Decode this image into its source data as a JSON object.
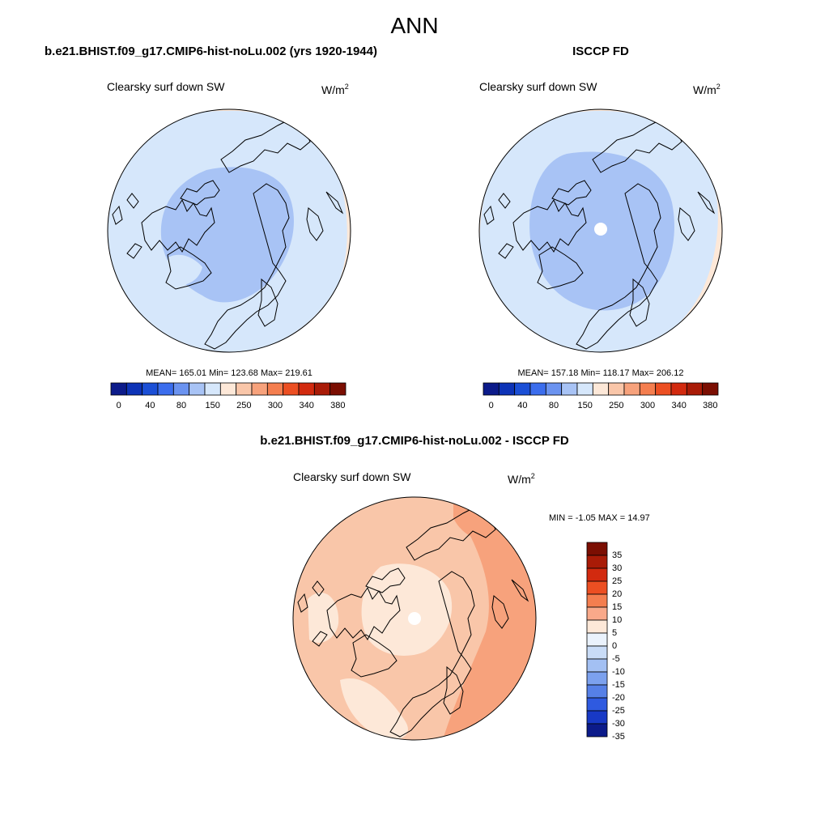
{
  "chart_data": {
    "type": "polar-stereographic contour maps (3 panels)",
    "title": "ANN",
    "colors": {
      "abs_palette": [
        "#0c1b8a",
        "#0d33b7",
        "#1b4fd6",
        "#3b6ded",
        "#6b93f0",
        "#a8c3f5",
        "#d6e7fb",
        "#fde8d8",
        "#f9c6a9",
        "#f7a27c",
        "#f47e4f",
        "#ec4f22",
        "#d22a0f",
        "#a91b07",
        "#7b0e02"
      ],
      "diff_palette_top_to_bottom": [
        "#7b0e02",
        "#a91b07",
        "#d22a0f",
        "#ec4f22",
        "#f47e4f",
        "#f9a98a",
        "#fde8d8",
        "#eaf2fc",
        "#c9dcf7",
        "#a3c0f3",
        "#7ca1ee",
        "#5680e7",
        "#2f5ae0",
        "#1839c5",
        "#0c1b8a"
      ],
      "land_line": "#000000"
    },
    "panels": [
      {
        "name": "model",
        "case_title": "b.e21.BHIST.f09_g17.CMIP6-hist-noLu.002 (yrs 1920-1944)",
        "variable": "Clearsky surf down SW",
        "units_base": "W/m",
        "units_exp": "2",
        "stats_line": "MEAN= 165.01  Min= 123.68  Max= 219.61",
        "mean": 165.01,
        "min": 123.68,
        "max": 219.61,
        "levels": [
          0,
          40,
          80,
          150,
          250,
          300,
          340,
          380
        ],
        "colorbar_tick_labels": [
          "0",
          "40",
          "80",
          "150",
          "250",
          "300",
          "340",
          "380"
        ],
        "fill_regions": [
          {
            "name": "outer ring",
            "color_index": 7
          },
          {
            "name": "mid-latitudes",
            "color_index": 6
          },
          {
            "name": "central arctic",
            "color_index": 5
          },
          {
            "name": "greenland interior",
            "color_index": 6
          }
        ]
      },
      {
        "name": "obs",
        "case_title": "ISCCP FD",
        "variable": "Clearsky surf down SW",
        "units_base": "W/m",
        "units_exp": "2",
        "stats_line": "MEAN= 157.18  Min= 118.17  Max= 206.12",
        "mean": 157.18,
        "min": 118.17,
        "max": 206.12,
        "levels": [
          0,
          40,
          80,
          150,
          250,
          300,
          340,
          380
        ],
        "colorbar_tick_labels": [
          "0",
          "40",
          "80",
          "150",
          "250",
          "300",
          "340",
          "380"
        ],
        "pole_hole": true
      },
      {
        "name": "difference",
        "case_title": "b.e21.BHIST.f09_g17.CMIP6-hist-noLu.002 - ISCCP FD",
        "variable": "Clearsky surf down SW",
        "units_base": "W/m",
        "units_exp": "2",
        "stats_line": "MIN =  -1.05 MAX =  14.97",
        "min": -1.05,
        "max": 14.97,
        "levels": [
          35,
          30,
          25,
          20,
          15,
          10,
          5,
          0,
          -5,
          -10,
          -15,
          -20,
          -25,
          -30,
          -35
        ],
        "colorbar_tick_labels": [
          "35",
          "30",
          "25",
          "20",
          "15",
          "10",
          "5",
          "0",
          "-5",
          "-10",
          "-15",
          "-20",
          "-25",
          "-30",
          "-35"
        ],
        "pole_hole": true
      }
    ]
  }
}
